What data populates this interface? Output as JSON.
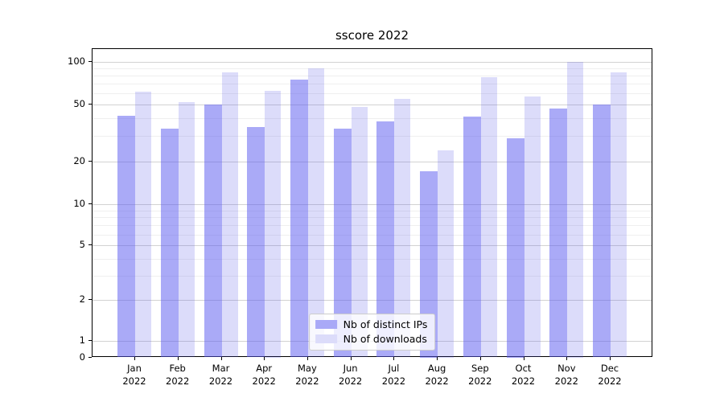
{
  "title": "sscore 2022",
  "chart_data": {
    "type": "bar",
    "title": "sscore 2022",
    "yscale": "symlog",
    "grid": true,
    "ylim": [
      0,
      120
    ],
    "y_major_ticks": [
      100,
      50,
      20,
      10,
      5,
      2,
      1,
      0
    ],
    "y_minor_gridlines": [
      3,
      4,
      6,
      7,
      8,
      9,
      30,
      40,
      60,
      70,
      80,
      90
    ],
    "categories": [
      "Jan",
      "Feb",
      "Mar",
      "Apr",
      "May",
      "Jun",
      "Jul",
      "Aug",
      "Sep",
      "Oct",
      "Nov",
      "Dec"
    ],
    "x_tick_second_line": "2022",
    "series": [
      {
        "name": "Nb of distinct IPs",
        "fill": "rgba(85,85,240,0.5)",
        "flat_color": "#a9a9f7",
        "values": [
          42,
          34,
          50,
          35,
          75,
          34,
          38,
          17,
          41,
          29,
          47,
          50
        ]
      },
      {
        "name": "Nb of downloads",
        "fill": "rgba(80,80,230,0.2)",
        "flat_color": "#dcdcfa",
        "values": [
          62,
          52,
          84,
          63,
          90,
          48,
          55,
          24,
          78,
          57,
          100,
          84
        ]
      }
    ],
    "legend_position": "lower center",
    "grid_major_color": "#d2d2d2",
    "grid_minor_color": "#efefef"
  }
}
